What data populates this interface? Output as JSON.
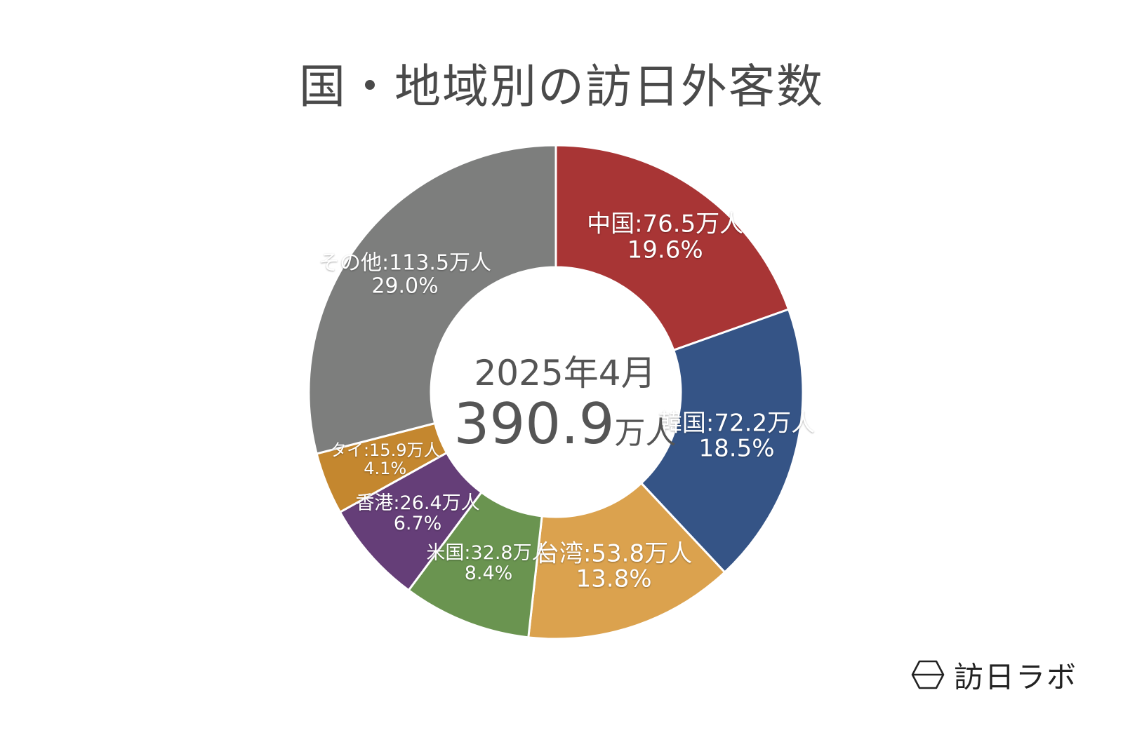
{
  "title": "国・地域別の訪日外客数",
  "center": {
    "period": "2025年4月",
    "total_value": "390.9",
    "total_unit": "万人"
  },
  "brand": {
    "name": "訪日ラボ",
    "logo_icon": "hexagon-logo-icon"
  },
  "chart_data": {
    "type": "pie",
    "variant": "donut",
    "unit": "万人",
    "total": 390.9,
    "slices": [
      {
        "name": "中国",
        "value": 76.5,
        "percent": 19.6,
        "color": "#a83535",
        "label": "中国:76.5万人",
        "percent_label": "19.6%"
      },
      {
        "name": "韓国",
        "value": 72.2,
        "percent": 18.5,
        "color": "#355486",
        "label": "韓国:72.2万人",
        "percent_label": "18.5%"
      },
      {
        "name": "台湾",
        "value": 53.8,
        "percent": 13.8,
        "color": "#dba24e",
        "label": "台湾:53.8万人",
        "percent_label": "13.8%"
      },
      {
        "name": "米国",
        "value": 32.8,
        "percent": 8.4,
        "color": "#6a9450",
        "label": "米国:32.8万人",
        "percent_label": "8.4%"
      },
      {
        "name": "香港",
        "value": 26.4,
        "percent": 6.7,
        "color": "#653e78",
        "label": "香港:26.4万人",
        "percent_label": "6.7%"
      },
      {
        "name": "タイ",
        "value": 15.9,
        "percent": 4.1,
        "color": "#c4872f",
        "label": "タイ:15.9万人",
        "percent_label": "4.1%"
      },
      {
        "name": "その他",
        "value": 113.5,
        "percent": 29.0,
        "color": "#7d7e7d",
        "label": "その他:113.5万人",
        "percent_label": "29.0%"
      }
    ]
  }
}
